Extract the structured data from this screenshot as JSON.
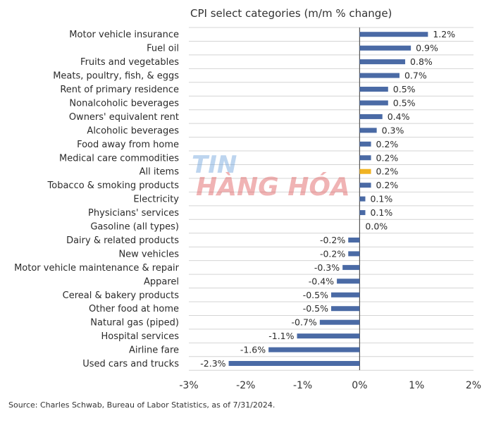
{
  "chart_data": {
    "type": "bar",
    "orientation": "horizontal",
    "title": "CPI select categories (m/m % change)",
    "categories": [
      "Motor vehicle insurance",
      "Fuel oil",
      "Fruits and vegetables",
      "Meats, poultry, fish, & eggs",
      "Rent of primary residence",
      "Nonalcoholic beverages",
      "Owners' equivalent rent",
      "Alcoholic beverages",
      "Food away from home",
      "Medical care commodities",
      "All items",
      "Tobacco & smoking products",
      "Electricity",
      "Physicians' services",
      "Gasoline (all types)",
      "Dairy & related products",
      "New vehicles",
      "Motor vehicle maintenance & repair",
      "Apparel",
      "Cereal & bakery products",
      "Other food at home",
      "Natural gas (piped)",
      "Hospital services",
      "Airline fare",
      "Used cars and trucks"
    ],
    "values": [
      1.2,
      0.9,
      0.8,
      0.7,
      0.5,
      0.5,
      0.4,
      0.3,
      0.2,
      0.2,
      0.2,
      0.2,
      0.1,
      0.1,
      0.0,
      -0.2,
      -0.2,
      -0.3,
      -0.4,
      -0.5,
      -0.5,
      -0.7,
      -1.1,
      -1.6,
      -2.3
    ],
    "value_labels": [
      "1.2%",
      "0.9%",
      "0.8%",
      "0.7%",
      "0.5%",
      "0.5%",
      "0.4%",
      "0.3%",
      "0.2%",
      "0.2%",
      "0.2%",
      "0.2%",
      "0.1%",
      "0.1%",
      "0.0%",
      "-0.2%",
      "-0.2%",
      "-0.3%",
      "-0.4%",
      "-0.5%",
      "-0.5%",
      "-0.7%",
      "-1.1%",
      "-1.6%",
      "-2.3%"
    ],
    "xlim": [
      -3,
      2
    ],
    "xticks": [
      -3,
      -2,
      -1,
      0,
      1,
      2
    ],
    "xtick_labels": [
      "-3%",
      "-2%",
      "-1%",
      "0%",
      "1%",
      "2%"
    ],
    "highlight_category": "All items",
    "grid": true,
    "colors": {
      "bar": "#4a6aa5",
      "highlight": "#f0b323",
      "grid": "#d4d4d4",
      "zero_line": "#555555"
    }
  },
  "source": "Source: Charles Schwab, Bureau of Labor Statistics, as of 7/31/2024.",
  "watermark": {
    "line1": "TIN",
    "line2": "HÀNG HÓA"
  }
}
